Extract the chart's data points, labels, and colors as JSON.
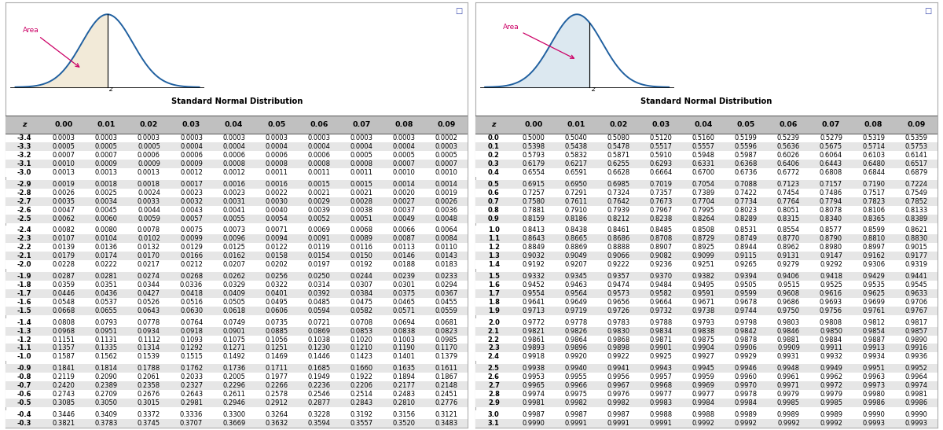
{
  "left_table_title": "Standard Normal Distribution",
  "right_table_title": "Standard Normal Distribution",
  "col_headers": [
    "z",
    "0.00",
    "0.01",
    "0.02",
    "0.03",
    "0.04",
    "0.05",
    "0.06",
    "0.07",
    "0.08",
    "0.09"
  ],
  "left_rows": [
    [
      "-3.4",
      "0.0003",
      "0.0003",
      "0.0003",
      "0.0003",
      "0.0003",
      "0.0003",
      "0.0003",
      "0.0003",
      "0.0003",
      "0.0002"
    ],
    [
      "-3.3",
      "0.0005",
      "0.0005",
      "0.0005",
      "0.0004",
      "0.0004",
      "0.0004",
      "0.0004",
      "0.0004",
      "0.0004",
      "0.0003"
    ],
    [
      "-3.2",
      "0.0007",
      "0.0007",
      "0.0006",
      "0.0006",
      "0.0006",
      "0.0006",
      "0.0006",
      "0.0005",
      "0.0005",
      "0.0005"
    ],
    [
      "-3.1",
      "0.0010",
      "0.0009",
      "0.0009",
      "0.0009",
      "0.0008",
      "0.0008",
      "0.0008",
      "0.0008",
      "0.0007",
      "0.0007"
    ],
    [
      "-3.0",
      "0.0013",
      "0.0013",
      "0.0013",
      "0.0012",
      "0.0012",
      "0.0011",
      "0.0011",
      "0.0011",
      "0.0010",
      "0.0010"
    ],
    [
      "-2.9",
      "0.0019",
      "0.0018",
      "0.0018",
      "0.0017",
      "0.0016",
      "0.0016",
      "0.0015",
      "0.0015",
      "0.0014",
      "0.0014"
    ],
    [
      "-2.8",
      "0.0026",
      "0.0025",
      "0.0024",
      "0.0023",
      "0.0023",
      "0.0022",
      "0.0021",
      "0.0021",
      "0.0020",
      "0.0019"
    ],
    [
      "-2.7",
      "0.0035",
      "0.0034",
      "0.0033",
      "0.0032",
      "0.0031",
      "0.0030",
      "0.0029",
      "0.0028",
      "0.0027",
      "0.0026"
    ],
    [
      "-2.6",
      "0.0047",
      "0.0045",
      "0.0044",
      "0.0043",
      "0.0041",
      "0.0040",
      "0.0039",
      "0.0038",
      "0.0037",
      "0.0036"
    ],
    [
      "-2.5",
      "0.0062",
      "0.0060",
      "0.0059",
      "0.0057",
      "0.0055",
      "0.0054",
      "0.0052",
      "0.0051",
      "0.0049",
      "0.0048"
    ],
    [
      "-2.4",
      "0.0082",
      "0.0080",
      "0.0078",
      "0.0075",
      "0.0073",
      "0.0071",
      "0.0069",
      "0.0068",
      "0.0066",
      "0.0064"
    ],
    [
      "-2.3",
      "0.0107",
      "0.0104",
      "0.0102",
      "0.0099",
      "0.0096",
      "0.0094",
      "0.0091",
      "0.0089",
      "0.0087",
      "0.0084"
    ],
    [
      "-2.2",
      "0.0139",
      "0.0136",
      "0.0132",
      "0.0129",
      "0.0125",
      "0.0122",
      "0.0119",
      "0.0116",
      "0.0113",
      "0.0110"
    ],
    [
      "-2.1",
      "0.0179",
      "0.0174",
      "0.0170",
      "0.0166",
      "0.0162",
      "0.0158",
      "0.0154",
      "0.0150",
      "0.0146",
      "0.0143"
    ],
    [
      "-2.0",
      "0.0228",
      "0.0222",
      "0.0217",
      "0.0212",
      "0.0207",
      "0.0202",
      "0.0197",
      "0.0192",
      "0.0188",
      "0.0183"
    ],
    [
      "-1.9",
      "0.0287",
      "0.0281",
      "0.0274",
      "0.0268",
      "0.0262",
      "0.0256",
      "0.0250",
      "0.0244",
      "0.0239",
      "0.0233"
    ],
    [
      "-1.8",
      "0.0359",
      "0.0351",
      "0.0344",
      "0.0336",
      "0.0329",
      "0.0322",
      "0.0314",
      "0.0307",
      "0.0301",
      "0.0294"
    ],
    [
      "-1.7",
      "0.0446",
      "0.0436",
      "0.0427",
      "0.0418",
      "0.0409",
      "0.0401",
      "0.0392",
      "0.0384",
      "0.0375",
      "0.0367"
    ],
    [
      "-1.6",
      "0.0548",
      "0.0537",
      "0.0526",
      "0.0516",
      "0.0505",
      "0.0495",
      "0.0485",
      "0.0475",
      "0.0465",
      "0.0455"
    ],
    [
      "-1.5",
      "0.0668",
      "0.0655",
      "0.0643",
      "0.0630",
      "0.0618",
      "0.0606",
      "0.0594",
      "0.0582",
      "0.0571",
      "0.0559"
    ],
    [
      "-1.4",
      "0.0808",
      "0.0793",
      "0.0778",
      "0.0764",
      "0.0749",
      "0.0735",
      "0.0721",
      "0.0708",
      "0.0694",
      "0.0681"
    ],
    [
      "-1.3",
      "0.0968",
      "0.0951",
      "0.0934",
      "0.0918",
      "0.0901",
      "0.0885",
      "0.0869",
      "0.0853",
      "0.0838",
      "0.0823"
    ],
    [
      "-1.2",
      "0.1151",
      "0.1131",
      "0.1112",
      "0.1093",
      "0.1075",
      "0.1056",
      "0.1038",
      "0.1020",
      "0.1003",
      "0.0985"
    ],
    [
      "-1.1",
      "0.1357",
      "0.1335",
      "0.1314",
      "0.1292",
      "0.1271",
      "0.1251",
      "0.1230",
      "0.1210",
      "0.1190",
      "0.1170"
    ],
    [
      "-1.0",
      "0.1587",
      "0.1562",
      "0.1539",
      "0.1515",
      "0.1492",
      "0.1469",
      "0.1446",
      "0.1423",
      "0.1401",
      "0.1379"
    ],
    [
      "-0.9",
      "0.1841",
      "0.1814",
      "0.1788",
      "0.1762",
      "0.1736",
      "0.1711",
      "0.1685",
      "0.1660",
      "0.1635",
      "0.1611"
    ],
    [
      "-0.8",
      "0.2119",
      "0.2090",
      "0.2061",
      "0.2033",
      "0.2005",
      "0.1977",
      "0.1949",
      "0.1922",
      "0.1894",
      "0.1867"
    ],
    [
      "-0.7",
      "0.2420",
      "0.2389",
      "0.2358",
      "0.2327",
      "0.2296",
      "0.2266",
      "0.2236",
      "0.2206",
      "0.2177",
      "0.2148"
    ],
    [
      "-0.6",
      "0.2743",
      "0.2709",
      "0.2676",
      "0.2643",
      "0.2611",
      "0.2578",
      "0.2546",
      "0.2514",
      "0.2483",
      "0.2451"
    ],
    [
      "-0.5",
      "0.3085",
      "0.3050",
      "0.3015",
      "0.2981",
      "0.2946",
      "0.2912",
      "0.2877",
      "0.2843",
      "0.2810",
      "0.2776"
    ],
    [
      "-0.4",
      "0.3446",
      "0.3409",
      "0.3372",
      "0.3336",
      "0.3300",
      "0.3264",
      "0.3228",
      "0.3192",
      "0.3156",
      "0.3121"
    ],
    [
      "-0.3",
      "0.3821",
      "0.3783",
      "0.3745",
      "0.3707",
      "0.3669",
      "0.3632",
      "0.3594",
      "0.3557",
      "0.3520",
      "0.3483"
    ]
  ],
  "right_rows": [
    [
      "0.0",
      "0.5000",
      "0.5040",
      "0.5080",
      "0.5120",
      "0.5160",
      "0.5199",
      "0.5239",
      "0.5279",
      "0.5319",
      "0.5359"
    ],
    [
      "0.1",
      "0.5398",
      "0.5438",
      "0.5478",
      "0.5517",
      "0.5557",
      "0.5596",
      "0.5636",
      "0.5675",
      "0.5714",
      "0.5753"
    ],
    [
      "0.2",
      "0.5793",
      "0.5832",
      "0.5871",
      "0.5910",
      "0.5948",
      "0.5987",
      "0.6026",
      "0.6064",
      "0.6103",
      "0.6141"
    ],
    [
      "0.3",
      "0.6179",
      "0.6217",
      "0.6255",
      "0.6293",
      "0.6331",
      "0.6368",
      "0.6406",
      "0.6443",
      "0.6480",
      "0.6517"
    ],
    [
      "0.4",
      "0.6554",
      "0.6591",
      "0.6628",
      "0.6664",
      "0.6700",
      "0.6736",
      "0.6772",
      "0.6808",
      "0.6844",
      "0.6879"
    ],
    [
      "0.5",
      "0.6915",
      "0.6950",
      "0.6985",
      "0.7019",
      "0.7054",
      "0.7088",
      "0.7123",
      "0.7157",
      "0.7190",
      "0.7224"
    ],
    [
      "0.6",
      "0.7257",
      "0.7291",
      "0.7324",
      "0.7357",
      "0.7389",
      "0.7422",
      "0.7454",
      "0.7486",
      "0.7517",
      "0.7549"
    ],
    [
      "0.7",
      "0.7580",
      "0.7611",
      "0.7642",
      "0.7673",
      "0.7704",
      "0.7734",
      "0.7764",
      "0.7794",
      "0.7823",
      "0.7852"
    ],
    [
      "0.8",
      "0.7881",
      "0.7910",
      "0.7939",
      "0.7967",
      "0.7995",
      "0.8023",
      "0.8051",
      "0.8078",
      "0.8106",
      "0.8133"
    ],
    [
      "0.9",
      "0.8159",
      "0.8186",
      "0.8212",
      "0.8238",
      "0.8264",
      "0.8289",
      "0.8315",
      "0.8340",
      "0.8365",
      "0.8389"
    ],
    [
      "1.0",
      "0.8413",
      "0.8438",
      "0.8461",
      "0.8485",
      "0.8508",
      "0.8531",
      "0.8554",
      "0.8577",
      "0.8599",
      "0.8621"
    ],
    [
      "1.1",
      "0.8643",
      "0.8665",
      "0.8686",
      "0.8708",
      "0.8729",
      "0.8749",
      "0.8770",
      "0.8790",
      "0.8810",
      "0.8830"
    ],
    [
      "1.2",
      "0.8849",
      "0.8869",
      "0.8888",
      "0.8907",
      "0.8925",
      "0.8944",
      "0.8962",
      "0.8980",
      "0.8997",
      "0.9015"
    ],
    [
      "1.3",
      "0.9032",
      "0.9049",
      "0.9066",
      "0.9082",
      "0.9099",
      "0.9115",
      "0.9131",
      "0.9147",
      "0.9162",
      "0.9177"
    ],
    [
      "1.4",
      "0.9192",
      "0.9207",
      "0.9222",
      "0.9236",
      "0.9251",
      "0.9265",
      "0.9279",
      "0.9292",
      "0.9306",
      "0.9319"
    ],
    [
      "1.5",
      "0.9332",
      "0.9345",
      "0.9357",
      "0.9370",
      "0.9382",
      "0.9394",
      "0.9406",
      "0.9418",
      "0.9429",
      "0.9441"
    ],
    [
      "1.6",
      "0.9452",
      "0.9463",
      "0.9474",
      "0.9484",
      "0.9495",
      "0.9505",
      "0.9515",
      "0.9525",
      "0.9535",
      "0.9545"
    ],
    [
      "1.7",
      "0.9554",
      "0.9564",
      "0.9573",
      "0.9582",
      "0.9591",
      "0.9599",
      "0.9608",
      "0.9616",
      "0.9625",
      "0.9633"
    ],
    [
      "1.8",
      "0.9641",
      "0.9649",
      "0.9656",
      "0.9664",
      "0.9671",
      "0.9678",
      "0.9686",
      "0.9693",
      "0.9699",
      "0.9706"
    ],
    [
      "1.9",
      "0.9713",
      "0.9719",
      "0.9726",
      "0.9732",
      "0.9738",
      "0.9744",
      "0.9750",
      "0.9756",
      "0.9761",
      "0.9767"
    ],
    [
      "2.0",
      "0.9772",
      "0.9778",
      "0.9783",
      "0.9788",
      "0.9793",
      "0.9798",
      "0.9803",
      "0.9808",
      "0.9812",
      "0.9817"
    ],
    [
      "2.1",
      "0.9821",
      "0.9826",
      "0.9830",
      "0.9834",
      "0.9838",
      "0.9842",
      "0.9846",
      "0.9850",
      "0.9854",
      "0.9857"
    ],
    [
      "2.2",
      "0.9861",
      "0.9864",
      "0.9868",
      "0.9871",
      "0.9875",
      "0.9878",
      "0.9881",
      "0.9884",
      "0.9887",
      "0.9890"
    ],
    [
      "2.3",
      "0.9893",
      "0.9896",
      "0.9898",
      "0.9901",
      "0.9904",
      "0.9906",
      "0.9909",
      "0.9911",
      "0.9913",
      "0.9916"
    ],
    [
      "2.4",
      "0.9918",
      "0.9920",
      "0.9922",
      "0.9925",
      "0.9927",
      "0.9929",
      "0.9931",
      "0.9932",
      "0.9934",
      "0.9936"
    ],
    [
      "2.5",
      "0.9938",
      "0.9940",
      "0.9941",
      "0.9943",
      "0.9945",
      "0.9946",
      "0.9948",
      "0.9949",
      "0.9951",
      "0.9952"
    ],
    [
      "2.6",
      "0.9953",
      "0.9955",
      "0.9956",
      "0.9957",
      "0.9959",
      "0.9960",
      "0.9961",
      "0.9962",
      "0.9963",
      "0.9964"
    ],
    [
      "2.7",
      "0.9965",
      "0.9966",
      "0.9967",
      "0.9968",
      "0.9969",
      "0.9970",
      "0.9971",
      "0.9972",
      "0.9973",
      "0.9974"
    ],
    [
      "2.8",
      "0.9974",
      "0.9975",
      "0.9976",
      "0.9977",
      "0.9977",
      "0.9978",
      "0.9979",
      "0.9979",
      "0.9980",
      "0.9981"
    ],
    [
      "2.9",
      "0.9981",
      "0.9982",
      "0.9982",
      "0.9983",
      "0.9984",
      "0.9984",
      "0.9985",
      "0.9985",
      "0.9986",
      "0.9986"
    ],
    [
      "3.0",
      "0.9987",
      "0.9987",
      "0.9987",
      "0.9988",
      "0.9988",
      "0.9989",
      "0.9989",
      "0.9989",
      "0.9990",
      "0.9990"
    ],
    [
      "3.1",
      "0.9990",
      "0.9991",
      "0.9991",
      "0.9991",
      "0.9992",
      "0.9992",
      "0.9992",
      "0.9992",
      "0.9993",
      "0.9993"
    ]
  ],
  "bg_color": "#ffffff",
  "row_colors": [
    "#ffffff",
    "#e6e6e6"
  ],
  "sep_indices": [
    4,
    9,
    14,
    19,
    24,
    29
  ],
  "curve_fill_left": "#f2ead8",
  "curve_fill_right": "#dce8f0",
  "curve_line_color": "#2060a0",
  "area_arrow_color": "#cc0066",
  "panel_border_color": "#aaaaaa",
  "header_bg": "#c0c0c0",
  "icon_color": "#3344aa"
}
